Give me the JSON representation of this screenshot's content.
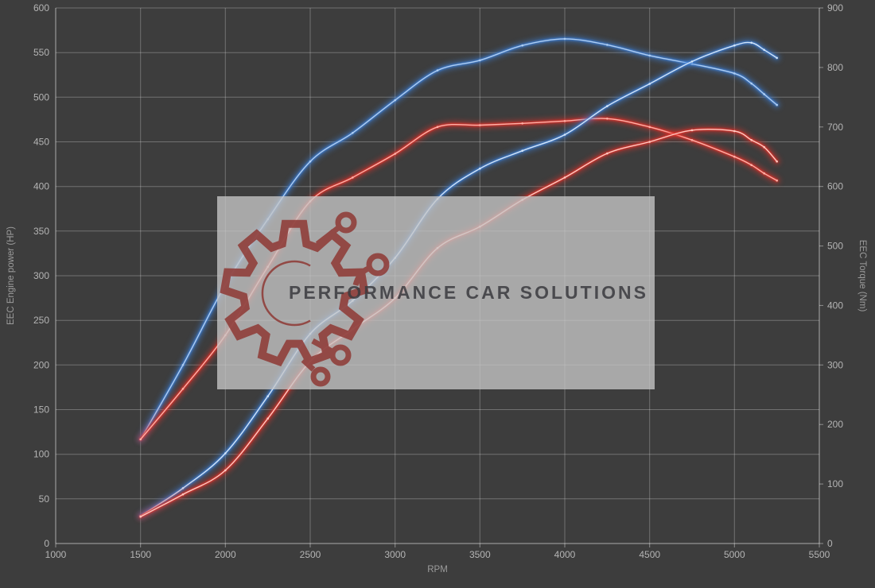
{
  "page": {
    "background": "#3d3d3d",
    "grid_color": "#6a6a6a",
    "tick_text_color": "#b4b4b4"
  },
  "chart_data": {
    "type": "line",
    "title": "",
    "xlabel": "RPM",
    "xlim": [
      1000,
      5500
    ],
    "x_ticks": [
      1000,
      1500,
      2000,
      2500,
      3000,
      3500,
      4000,
      4500,
      5000,
      5500
    ],
    "left_axis": {
      "label": "EEC Engine power (HP)",
      "lim": [
        0,
        600
      ],
      "ticks": [
        0,
        50,
        100,
        150,
        200,
        250,
        300,
        350,
        400,
        450,
        500,
        550,
        600
      ]
    },
    "right_axis": {
      "label": "EEC Torque (Nm)",
      "lim": [
        0,
        900
      ],
      "ticks": [
        0,
        100,
        200,
        300,
        400,
        500,
        600,
        700,
        800,
        900
      ]
    },
    "grid": true,
    "legend": "none",
    "x": [
      1500,
      1750,
      2000,
      2250,
      2500,
      2750,
      3000,
      3250,
      3500,
      3750,
      4000,
      4250,
      4500,
      4750,
      5000,
      5100,
      5175,
      5250
    ],
    "series": [
      {
        "name": "torque-curve-blue",
        "axis": "right",
        "unit": "Nm",
        "color": "#3d7fd6",
        "core_color": "#aecdf2",
        "values": [
          175,
          300,
          435,
          545,
          642,
          690,
          745,
          795,
          812,
          837,
          848,
          838,
          820,
          806,
          790,
          773,
          755,
          737
        ]
      },
      {
        "name": "torque-curve-red",
        "axis": "right",
        "unit": "Nm",
        "color": "#e2332b",
        "core_color": "#ffb0a6",
        "values": [
          175,
          260,
          350,
          465,
          575,
          615,
          655,
          700,
          703,
          706,
          710,
          714,
          700,
          678,
          650,
          636,
          622,
          610
        ]
      },
      {
        "name": "power-curve-blue",
        "axis": "left",
        "unit": "HP",
        "color": "#3d7fd6",
        "core_color": "#d2e4f8",
        "values": [
          31,
          62,
          101,
          165,
          235,
          272,
          320,
          386,
          420,
          440,
          458,
          490,
          515,
          540,
          558,
          561,
          553,
          544
        ]
      },
      {
        "name": "power-curve-red",
        "axis": "left",
        "unit": "HP",
        "color": "#e2332b",
        "core_color": "#ffc9c0",
        "values": [
          30,
          55,
          82,
          140,
          204,
          240,
          275,
          331,
          355,
          385,
          410,
          437,
          450,
          463,
          462,
          452,
          444,
          428
        ]
      }
    ]
  },
  "watermark": {
    "text": "PERFORMANCE CAR SOLUTIONS",
    "logo": "gear-circuit-icon",
    "box_color": "#c6c6c6",
    "logo_color": "#8f3c38",
    "text_color": "#3a3a3e"
  }
}
